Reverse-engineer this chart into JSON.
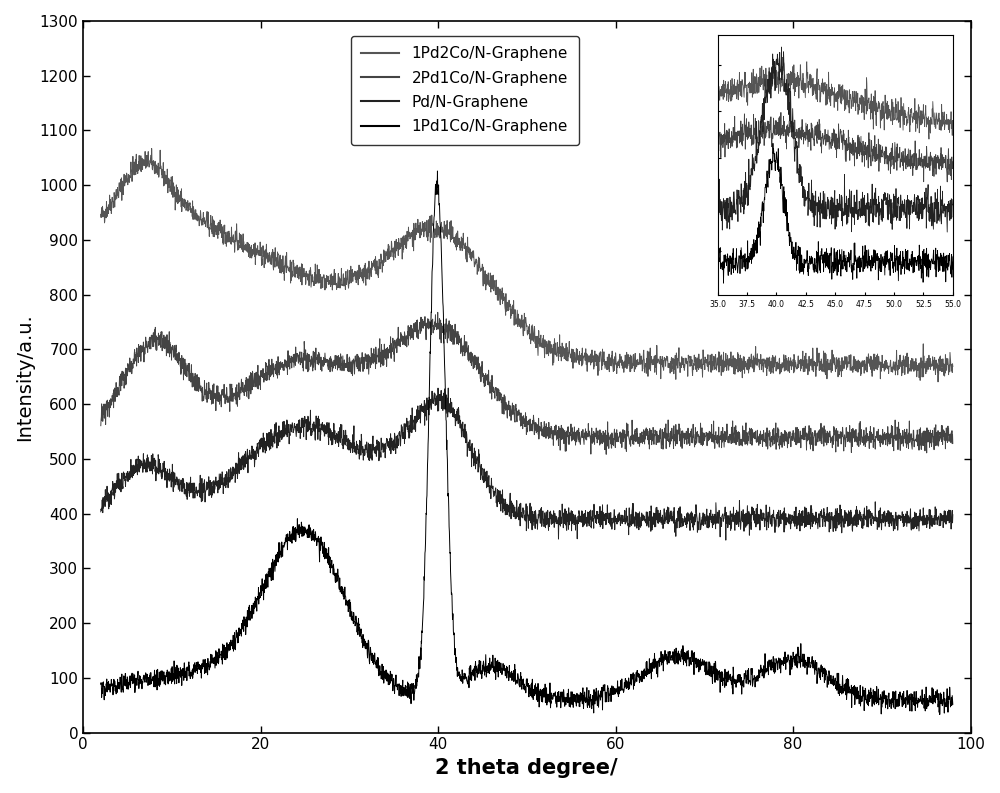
{
  "title": "",
  "xlabel": "2 theta degree/",
  "ylabel": "Intensity/a.u.",
  "xlim": [
    0,
    100
  ],
  "ylim": [
    0,
    1300
  ],
  "yticks": [
    0,
    100,
    200,
    300,
    400,
    500,
    600,
    700,
    800,
    900,
    1000,
    1100,
    1200,
    1300
  ],
  "xticks": [
    0,
    20,
    40,
    60,
    80,
    100
  ],
  "legend_labels": [
    "1Pd2Co/N-Graphene",
    "2Pd1Co/N-Graphene",
    "Pd/N-Graphene",
    "1Pd1Co/N-Graphene"
  ],
  "line_colors": [
    "#555555",
    "#444444",
    "#222222",
    "#000000"
  ],
  "background_color": "#ffffff",
  "noise_seed": 42
}
